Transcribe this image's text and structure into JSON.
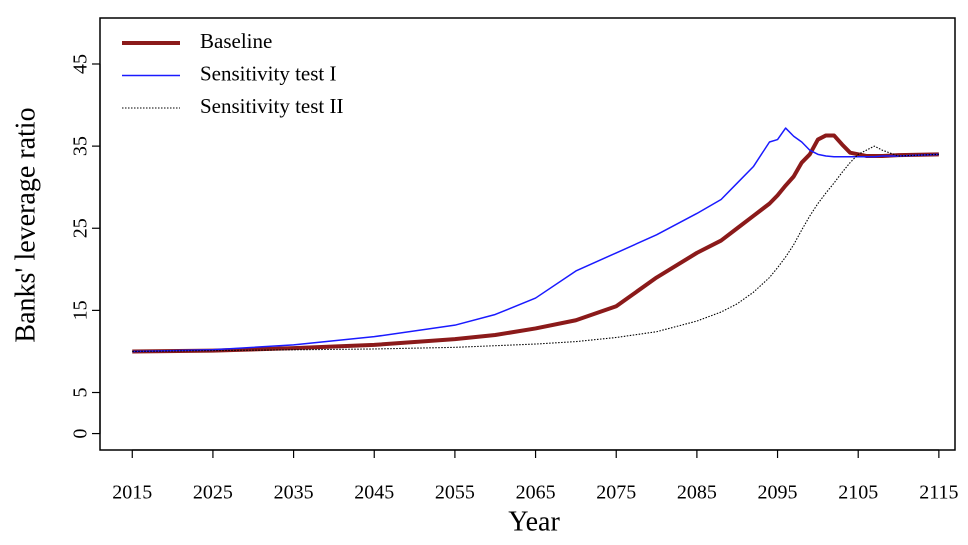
{
  "chart_data": {
    "type": "line",
    "x_label": "Year",
    "y_label": "Banks' leverage ratio",
    "x": [
      2015,
      2025,
      2035,
      2045,
      2055,
      2060,
      2065,
      2070,
      2075,
      2080,
      2085,
      2088,
      2090,
      2092,
      2094,
      2095,
      2096,
      2097,
      2098,
      2099,
      2100,
      2101,
      2102,
      2103,
      2104,
      2105,
      2106,
      2107,
      2108,
      2110,
      2115
    ],
    "series": [
      {
        "name": "Baseline",
        "color": "#8b1a1a",
        "values": [
          10,
          10.1,
          10.4,
          10.8,
          11.5,
          12,
          12.8,
          13.8,
          15.5,
          19,
          22,
          23.5,
          25,
          26.5,
          28,
          29,
          30.2,
          31.3,
          33,
          34,
          35.8,
          36.3,
          36.3,
          35.2,
          34.2,
          34,
          33.8,
          33.8,
          33.8,
          33.9,
          34
        ]
      },
      {
        "name": "Sensitivity test I",
        "color": "#1a1aff",
        "values": [
          10,
          10.2,
          10.8,
          11.8,
          13.2,
          14.5,
          16.5,
          19.8,
          22,
          24.2,
          26.8,
          28.5,
          30.5,
          32.5,
          35.5,
          35.8,
          37.2,
          36.2,
          35.5,
          34.5,
          34,
          33.8,
          33.7,
          33.7,
          33.7,
          33.7,
          33.7,
          33.7,
          33.8,
          33.8,
          34
        ]
      },
      {
        "name": "Sensitivity test II",
        "color": "#000000",
        "values": [
          10,
          10.1,
          10.2,
          10.3,
          10.5,
          10.7,
          10.9,
          11.2,
          11.7,
          12.4,
          13.7,
          14.8,
          15.8,
          17.2,
          19,
          20.2,
          21.5,
          23,
          24.8,
          26.5,
          28,
          29.3,
          30.5,
          31.8,
          33,
          34,
          34.5,
          35,
          34.5,
          33.8,
          34
        ]
      }
    ],
    "xlim": [
      2011,
      2117
    ],
    "ylim": [
      -2,
      50.6
    ],
    "xticks": [
      2015,
      2025,
      2035,
      2045,
      2055,
      2065,
      2075,
      2085,
      2095,
      2105,
      2115
    ],
    "yticks": [
      0,
      5,
      15,
      25,
      35,
      45
    ],
    "legend": "top-left"
  }
}
